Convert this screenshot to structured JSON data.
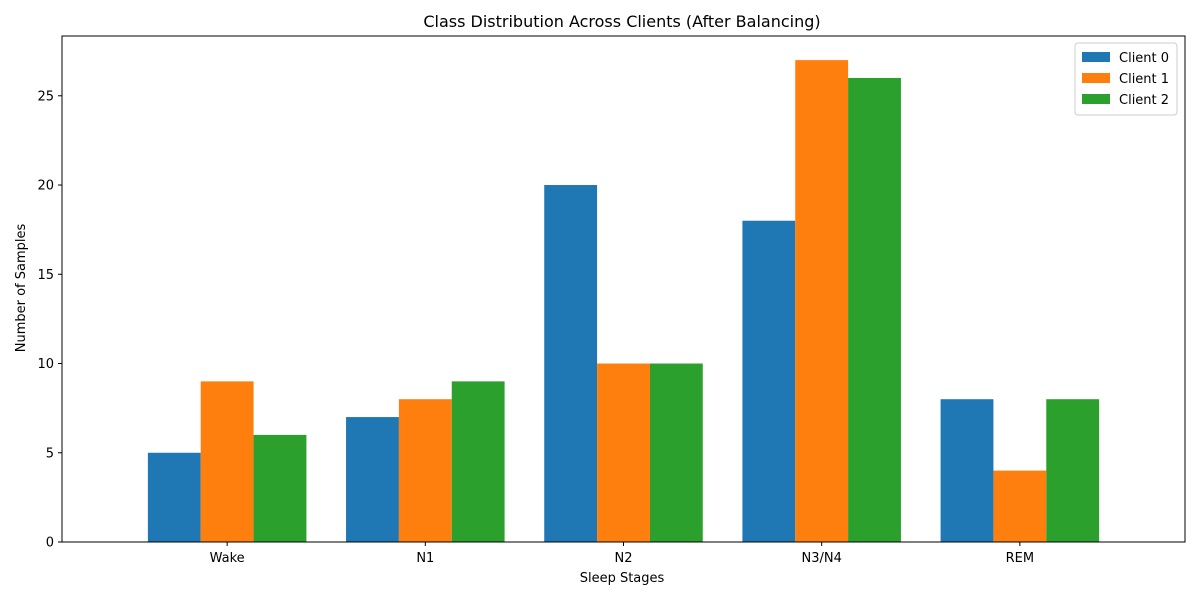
{
  "chart_data": {
    "type": "bar",
    "title": "Class Distribution Across Clients (After Balancing)",
    "xlabel": "Sleep Stages",
    "ylabel": "Number of Samples",
    "categories": [
      "Wake",
      "N1",
      "N2",
      "N3/N4",
      "REM"
    ],
    "ylim": [
      0,
      28.35
    ],
    "yticks": [
      0,
      5,
      10,
      15,
      20,
      25
    ],
    "grid": false,
    "legend_position": "top-right",
    "series": [
      {
        "name": "Client 0",
        "color": "#1f77b4",
        "values": [
          5,
          7,
          20,
          18,
          8
        ]
      },
      {
        "name": "Client 1",
        "color": "#ff7f0e",
        "values": [
          9,
          8,
          10,
          27,
          4
        ]
      },
      {
        "name": "Client 2",
        "color": "#2ca02c",
        "values": [
          6,
          9,
          10,
          26,
          8
        ]
      }
    ]
  }
}
